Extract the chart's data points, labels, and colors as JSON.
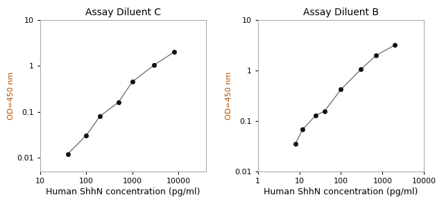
{
  "left": {
    "title": "Assay Diluent C",
    "x": [
      40,
      100,
      200,
      500,
      1000,
      3000,
      8000
    ],
    "y": [
      0.012,
      0.03,
      0.08,
      0.16,
      0.45,
      1.05,
      2.0
    ],
    "xlim": [
      10,
      40000
    ],
    "ylim": [
      0.005,
      10
    ],
    "xticks": [
      10,
      100,
      1000,
      10000
    ],
    "yticks": [
      0.01,
      0.1,
      1,
      10
    ]
  },
  "right": {
    "title": "Assay Diluent B",
    "x": [
      8,
      12,
      25,
      40,
      100,
      300,
      700,
      2000
    ],
    "y": [
      0.035,
      0.068,
      0.13,
      0.155,
      0.42,
      1.05,
      2.0,
      3.2
    ],
    "xlim": [
      1,
      10000
    ],
    "ylim": [
      0.01,
      10
    ],
    "xticks": [
      1,
      10,
      100,
      1000,
      10000
    ],
    "yticks": [
      0.01,
      0.1,
      1,
      10
    ]
  },
  "xlabel": "Human ShhN concentration (pg/ml)",
  "ylabel": "OD=450 nm",
  "line_color": "#666666",
  "marker_color": "#111111",
  "title_fontsize": 10,
  "xlabel_fontsize": 9,
  "ylabel_fontsize": 8,
  "tick_fontsize": 8,
  "tick_label_color": "#000000",
  "ylabel_color": "#b05000",
  "axis_color": "#aaaaaa",
  "marker_size": 4.5
}
